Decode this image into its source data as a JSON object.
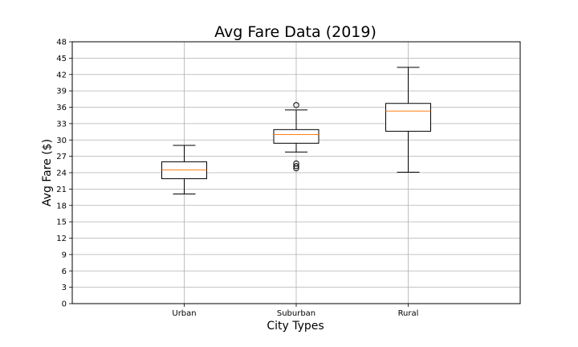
{
  "chart_data": {
    "type": "box",
    "title": "Avg Fare Data (2019)",
    "xlabel": "City Types",
    "ylabel": "Avg Fare ($)",
    "ylim": [
      0,
      48
    ],
    "yticks": [
      0,
      3,
      6,
      9,
      12,
      15,
      18,
      21,
      24,
      27,
      30,
      33,
      36,
      39,
      42,
      45,
      48
    ],
    "grid": true,
    "categories": [
      "Urban",
      "Suburban",
      "Rural"
    ],
    "boxes": [
      {
        "category": "Urban",
        "whisker_low": 20.1,
        "q1": 22.9,
        "median": 24.5,
        "q3": 26.0,
        "whisker_high": 29.0,
        "outliers": []
      },
      {
        "category": "Suburban",
        "whisker_low": 27.8,
        "q1": 29.4,
        "median": 31.0,
        "q3": 31.9,
        "whisker_high": 35.5,
        "outliers": [
          36.4,
          25.7,
          25.2,
          24.8
        ]
      },
      {
        "category": "Rural",
        "whisker_low": 24.1,
        "q1": 31.6,
        "median": 35.3,
        "q3": 36.7,
        "whisker_high": 43.3,
        "outliers": []
      }
    ],
    "colors": {
      "box": "#000000",
      "median": "#ff7f0e",
      "grid": "#b0b0b0"
    }
  }
}
